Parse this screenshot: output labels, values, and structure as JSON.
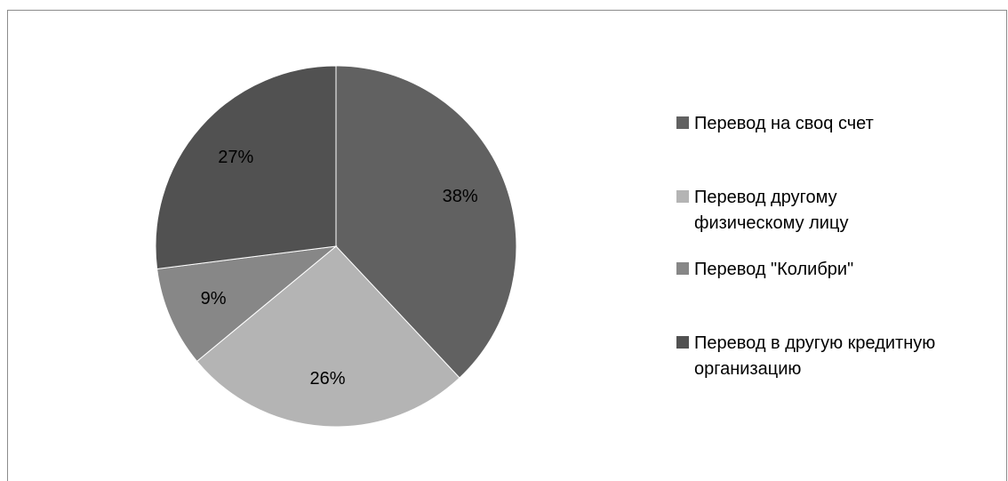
{
  "chart_data": {
    "type": "pie",
    "title": "",
    "slices": [
      {
        "label": "Перевод на своq счет",
        "value": 38,
        "display": "38%",
        "color": "#616161"
      },
      {
        "label": "Перевод другому\nфизическому лицу",
        "value": 26,
        "display": "26%",
        "color": "#b4b4b4"
      },
      {
        "label": "Перевод \"Колибри\"",
        "value": 9,
        "display": "9%",
        "color": "#878787"
      },
      {
        "label": "Перевод в другую кредитную\nорганизацию",
        "value": 27,
        "display": "27%",
        "color": "#515151"
      }
    ],
    "legend_position": "right"
  }
}
